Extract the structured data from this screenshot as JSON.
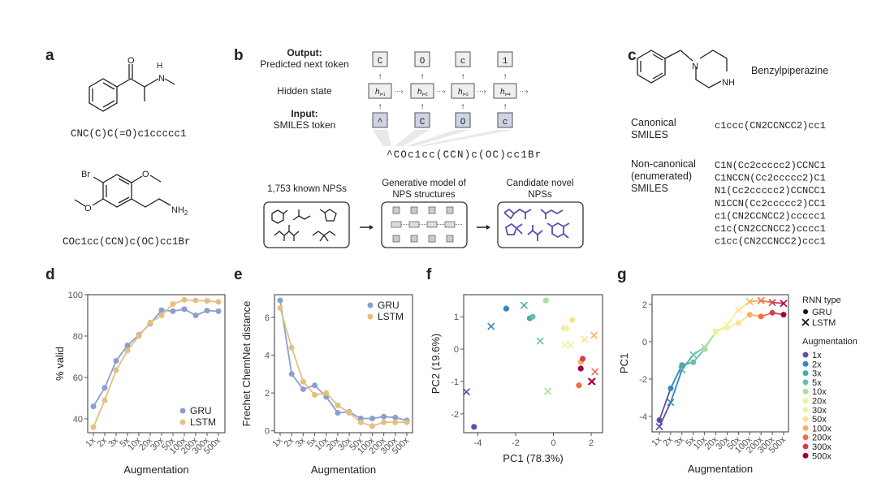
{
  "panel_labels": {
    "a": "a",
    "b": "b",
    "c": "c",
    "d": "d",
    "e": "e",
    "f": "f",
    "g": "g"
  },
  "panel_a": {
    "molecule1": {
      "atoms": {
        "O": "O",
        "H": "H",
        "N": "N"
      },
      "smiles": "CNC(C)C(=O)c1ccccc1"
    },
    "molecule2": {
      "atoms": {
        "Br": "Br",
        "O1": "O",
        "O2": "O",
        "NH2": "NH",
        "sub2": "2"
      },
      "smiles": "COc1cc(CCN)c(OC)cc1Br"
    }
  },
  "panel_b": {
    "output_label": "Output:",
    "output_sub": "Predicted next token",
    "hidden_label": "Hidden state",
    "input_label": "Input:",
    "input_sub": "SMILES token",
    "output_tokens": [
      "C",
      "O",
      "c",
      "1"
    ],
    "hidden_states": [
      "t=1",
      "t=2",
      "t=3",
      "t=4"
    ],
    "hidden_symbol": "h",
    "input_tokens": [
      "^",
      "C",
      "O",
      "c"
    ],
    "smiles": "^COc1cc(CCN)c(OC)cc1Br",
    "pipeline": [
      {
        "title1": "1,753 known NPSs",
        "title2": ""
      },
      {
        "title1": "Generative model of",
        "title2": "NPS structures"
      },
      {
        "title1": "Candidate novel",
        "title2": "NPSs"
      }
    ]
  },
  "panel_c": {
    "atoms": {
      "N": "N",
      "NH": "NH"
    },
    "name": "Benzylpiperazine",
    "canonical_label": [
      "Canonical",
      "SMILES"
    ],
    "canonical_smiles": "c1ccc(CN2CCNCC2)cc1",
    "noncanonical_label": [
      "Non-canonical",
      "(enumerated)",
      "SMILES"
    ],
    "noncanonical_smiles": [
      "C1N(Cc2ccccc2)CCNC1",
      "C1NCCN(Cc2ccccc2)C1",
      "N1(Cc2ccccc2)CCNCC1",
      "N1CCN(Cc2ccccc2)CC1",
      "c1(CN2CCNCC2)ccccc1",
      "c1c(CN2CCNCC2)cccc1",
      "c1cc(CN2CCNCC2)ccc1"
    ]
  },
  "colors": {
    "GRU": "#8a9fd1",
    "LSTM": "#e4c07f",
    "augmentation": [
      "#5e4fa2",
      "#3288bd",
      "#4aa8b0",
      "#66c2a5",
      "#abdda4",
      "#e6f598",
      "#f2f0a6",
      "#fee08b",
      "#fdae61",
      "#f46d43",
      "#d53e4f",
      "#9e0142"
    ]
  },
  "chart_data": [
    {
      "id": "d",
      "type": "line",
      "categories": [
        "1x",
        "2x",
        "3x",
        "5x",
        "10x",
        "20x",
        "30x",
        "50x",
        "100x",
        "200x",
        "300x",
        "500x"
      ],
      "series": [
        {
          "name": "GRU",
          "values": [
            46,
            55,
            68,
            75.5,
            80.5,
            86,
            92.5,
            92,
            93,
            90,
            92.3,
            92
          ]
        },
        {
          "name": "LSTM",
          "values": [
            36,
            49,
            63.5,
            73,
            80,
            86.5,
            90,
            95.5,
            97.5,
            97.2,
            97,
            96.5
          ]
        }
      ],
      "xlabel": "Augmentation",
      "ylabel": "% valid",
      "ylim": [
        33.3,
        100
      ],
      "yticks": [
        "40",
        "60",
        "80",
        "100"
      ],
      "legend": "bottom-right"
    },
    {
      "id": "e",
      "type": "line",
      "categories": [
        "1x",
        "2x",
        "3x",
        "5x",
        "10x",
        "20x",
        "30x",
        "50x",
        "100x",
        "200x",
        "300x",
        "500x"
      ],
      "series": [
        {
          "name": "GRU",
          "values": [
            6.9,
            3.0,
            2.2,
            2.4,
            1.8,
            0.95,
            1.0,
            0.65,
            0.65,
            0.75,
            0.7,
            0.55
          ]
        },
        {
          "name": "LSTM",
          "values": [
            6.5,
            4.4,
            2.6,
            1.9,
            2.0,
            1.35,
            0.95,
            0.45,
            0.25,
            0.45,
            0.45,
            0.45
          ]
        }
      ],
      "xlabel": "Augmentation",
      "ylabel": "Frechet ChemNet distance",
      "ylim": [
        -0.1,
        7.2
      ],
      "yticks": [
        "0",
        "2",
        "4",
        "6"
      ],
      "legend": "top-right"
    },
    {
      "id": "f",
      "type": "scatter",
      "augmentation": [
        "1x",
        "2x",
        "3x",
        "5x",
        "10x",
        "20x",
        "30x",
        "50x",
        "100x",
        "200x",
        "300x",
        "500x"
      ],
      "series": [
        {
          "name": "GRU",
          "marker": "circle",
          "points": [
            [
              -4.2,
              -2.4
            ],
            [
              -2.5,
              1.25
            ],
            [
              -1.25,
              0.95
            ],
            [
              -1.1,
              1.0
            ],
            [
              -0.4,
              1.5
            ],
            [
              0.55,
              0.65
            ],
            [
              0.7,
              0.63
            ],
            [
              1.0,
              0.9
            ],
            [
              1.45,
              -0.4
            ],
            [
              1.35,
              -1.12
            ],
            [
              1.55,
              -0.3
            ],
            [
              1.45,
              -0.6
            ]
          ]
        },
        {
          "name": "LSTM",
          "marker": "cross",
          "points": [
            [
              -4.6,
              -1.32
            ],
            [
              -3.3,
              0.7
            ],
            [
              -1.55,
              1.35
            ],
            [
              -0.7,
              0.25
            ],
            [
              -0.3,
              -1.3
            ],
            [
              0.9,
              0.12
            ],
            [
              0.6,
              0.13
            ],
            [
              1.65,
              0.3
            ],
            [
              2.15,
              0.43
            ],
            [
              2.2,
              -0.7
            ],
            [
              2.0,
              -1.0
            ],
            [
              2.05,
              -1.0
            ]
          ]
        }
      ],
      "xlabel": "PC1 (78.3%)",
      "ylabel": "PC2 (19.6%)",
      "xlim": [
        -4.75,
        2.6
      ],
      "ylim": [
        -2.58,
        1.68
      ],
      "xticks": [
        "-4",
        "-2",
        "0",
        "2"
      ],
      "yticks": [
        "-2",
        "-1",
        "0",
        "1"
      ]
    },
    {
      "id": "g",
      "type": "line",
      "categories": [
        "1x",
        "2x",
        "3x",
        "5x",
        "10x",
        "20x",
        "30x",
        "50x",
        "100x",
        "200x",
        "300x",
        "500x"
      ],
      "series": [
        {
          "name": "GRU",
          "marker": "circle",
          "values": [
            -4.2,
            -2.5,
            -1.25,
            -1.1,
            -0.4,
            0.55,
            0.75,
            1.0,
            1.45,
            1.35,
            1.55,
            1.45
          ]
        },
        {
          "name": "LSTM",
          "marker": "cross",
          "values": [
            -4.55,
            -3.25,
            -1.5,
            -0.7,
            -0.3,
            0.5,
            0.9,
            1.7,
            2.15,
            2.2,
            2.1,
            2.05
          ]
        }
      ],
      "xlabel": "Augmentation",
      "ylabel": "PC1",
      "ylim": [
        -4.83,
        2.52
      ],
      "yticks": [
        "-4",
        "-2",
        "0",
        "2"
      ],
      "legend_title_marker": "RNN type",
      "legend_title_color": "Augmentation",
      "legend": "right"
    }
  ]
}
